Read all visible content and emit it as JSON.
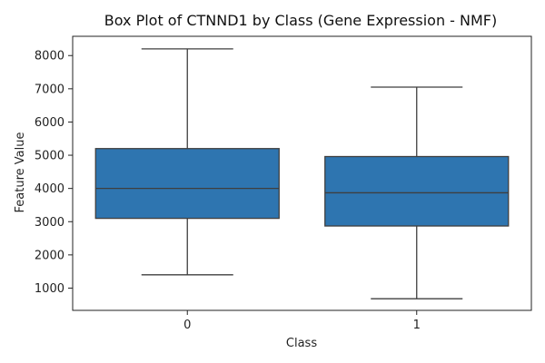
{
  "chart_data": {
    "type": "box",
    "title": "Box Plot of CTNND1 by Class (Gene Expression - NMF)",
    "xlabel": "Class",
    "ylabel": "Feature Value",
    "categories": [
      "0",
      "1"
    ],
    "boxes": [
      {
        "category": "0",
        "whisker_low": 1400,
        "q1": 3100,
        "median": 4000,
        "q3": 5200,
        "whisker_high": 8200
      },
      {
        "category": "1",
        "whisker_low": 680,
        "q1": 2870,
        "median": 3870,
        "q3": 4960,
        "whisker_high": 7050
      }
    ],
    "ylim": [
      330,
      8580
    ],
    "yticks": [
      1000,
      2000,
      3000,
      4000,
      5000,
      6000,
      7000,
      8000
    ],
    "grid": false,
    "box_color": "#2e75b0",
    "line_color": "#3f3f3f"
  }
}
